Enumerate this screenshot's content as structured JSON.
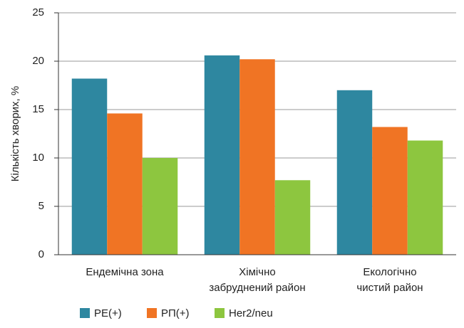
{
  "chart_data": {
    "type": "bar",
    "categories": [
      "Ендемічна зона",
      "Хімічно\nзабруднений район",
      "Екологічно\nчистий район"
    ],
    "series": [
      {
        "name": "PE(+)",
        "color": "#2e87a0",
        "values": [
          18.2,
          20.6,
          17.0
        ]
      },
      {
        "name": "РП(+)",
        "color": "#f07424",
        "values": [
          14.6,
          20.2,
          13.2
        ]
      },
      {
        "name": "Her2/neu",
        "color": "#8dc63f",
        "values": [
          10.0,
          7.7,
          11.8
        ]
      }
    ],
    "ylabel": "Кількість хворих, %",
    "ylim": [
      0,
      25
    ],
    "yticks": [
      0,
      5,
      10,
      15,
      20,
      25
    ],
    "grid": true,
    "legend": "bottom"
  }
}
